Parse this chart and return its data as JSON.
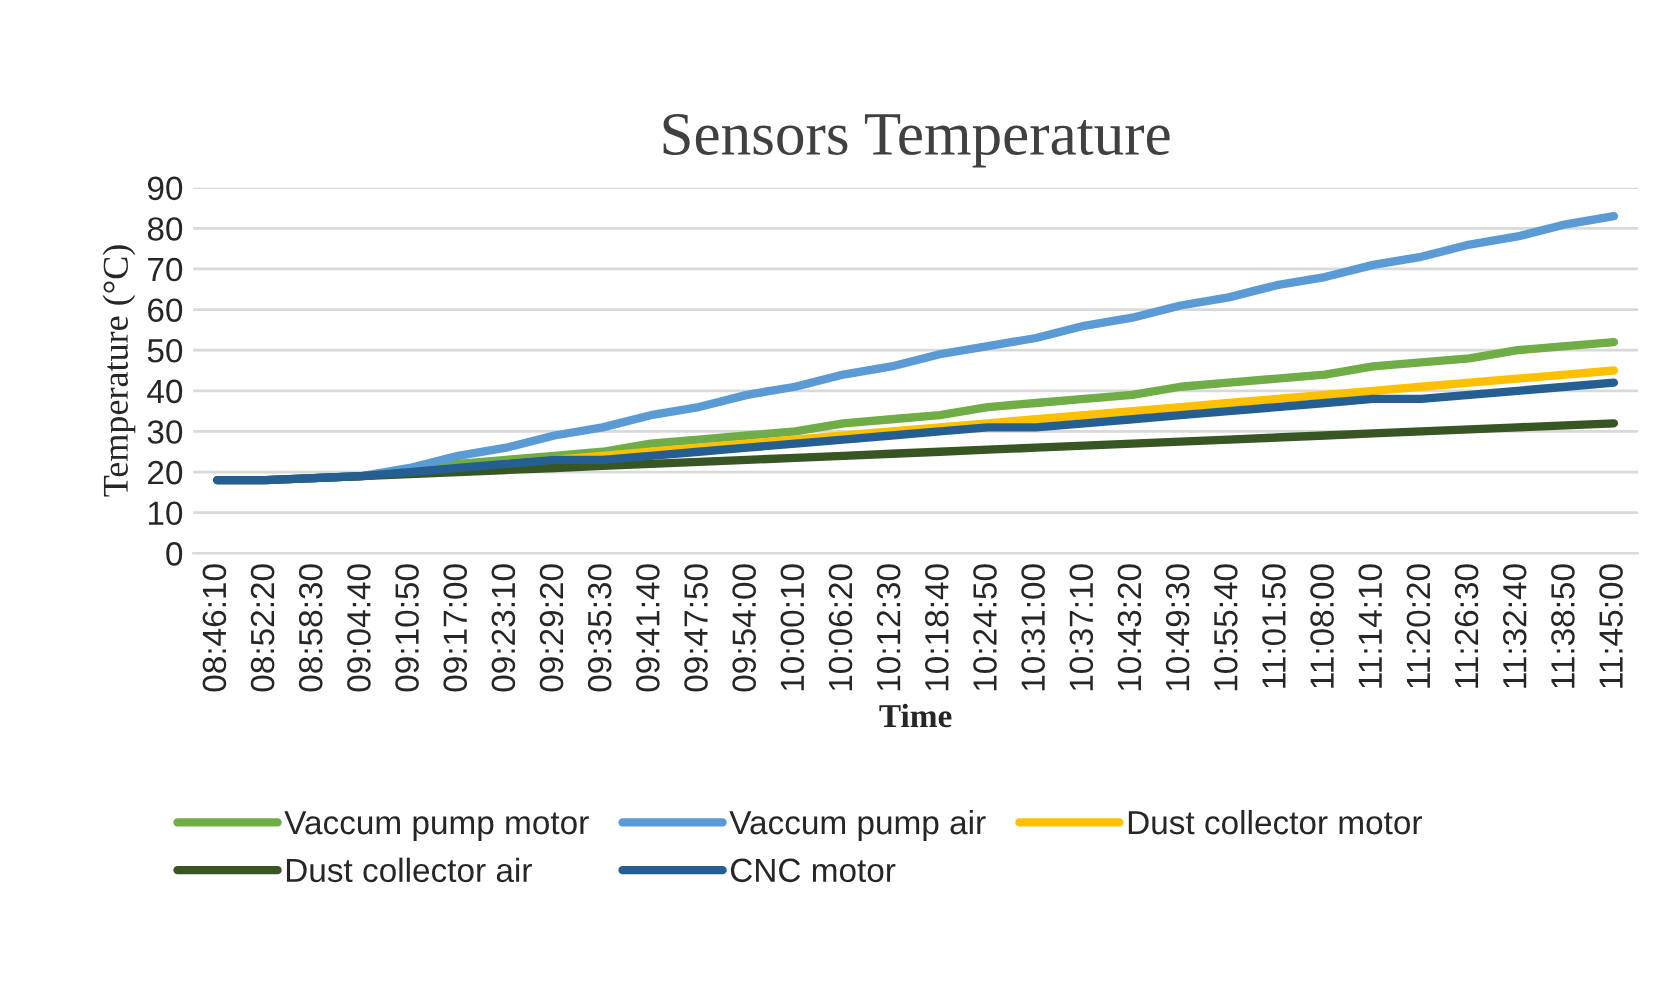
{
  "chart_data": {
    "type": "line",
    "title": "Sensors Temperature",
    "xlabel": "Time",
    "ylabel": "Temperature (°C)",
    "categories": [
      "08:46:10",
      "08:52:20",
      "08:58:30",
      "09:04:40",
      "09:10:50",
      "09:17:00",
      "09:23:10",
      "09:29:20",
      "09:35:30",
      "09:41:40",
      "09:47:50",
      "09:54:00",
      "10:00:10",
      "10:06:20",
      "10:12:30",
      "10:18:40",
      "10:24:50",
      "10:31:00",
      "10:37:10",
      "10:43:20",
      "10:49:30",
      "10:55:40",
      "11:01:50",
      "11:08:00",
      "11:14:10",
      "11:20:20",
      "11:26:30",
      "11:32:40",
      "11:38:50",
      "11:45:00"
    ],
    "series": [
      {
        "name": "Vaccum pump motor",
        "color": "#70ad47",
        "values": [
          18,
          18,
          18.5,
          19,
          20,
          22,
          23,
          24,
          25,
          27,
          28,
          29,
          30,
          32,
          33,
          34,
          36,
          37,
          38,
          39,
          41,
          42,
          43,
          44,
          46,
          47,
          48,
          50,
          51,
          52
        ]
      },
      {
        "name": "Vaccum pump air",
        "color": "#5b9bd5",
        "values": [
          null,
          null,
          18.5,
          19,
          21,
          24,
          26,
          29,
          31,
          34,
          36,
          39,
          41,
          44,
          46,
          49,
          51,
          53,
          56,
          58,
          61,
          63,
          66,
          68,
          71,
          73,
          76,
          78,
          81,
          83
        ]
      },
      {
        "name": "Dust collector motor",
        "color": "#ffc000",
        "values": [
          null,
          null,
          null,
          null,
          null,
          null,
          22,
          23,
          24,
          25,
          26,
          27,
          28,
          29,
          30,
          31,
          32,
          33,
          34,
          35,
          36,
          37,
          38,
          39,
          40,
          41,
          42,
          43,
          44,
          45
        ]
      },
      {
        "name": "Dust collector air",
        "color": "#375623",
        "values": [
          18,
          18,
          18.5,
          19,
          19.5,
          20,
          20.5,
          21,
          21.5,
          22,
          22.5,
          23,
          23.5,
          24,
          24.5,
          25,
          25.5,
          26,
          26.5,
          27,
          27.5,
          28,
          28.5,
          29,
          29.5,
          30,
          30.5,
          31,
          31.5,
          32
        ]
      },
      {
        "name": "CNC motor",
        "color": "#255e91",
        "values": [
          18,
          18,
          18.5,
          19,
          20,
          21,
          22,
          23,
          23,
          24,
          25,
          26,
          27,
          28,
          29,
          30,
          31,
          31,
          32,
          33,
          34,
          35,
          36,
          37,
          38,
          38,
          39,
          40,
          41,
          42
        ]
      }
    ],
    "ylim": [
      0,
      90
    ],
    "yticks": [
      0,
      10,
      20,
      30,
      40,
      50,
      60,
      70,
      80,
      90
    ],
    "grid": "y",
    "legend": "bottom",
    "marker": "none",
    "line_style": "solid"
  }
}
